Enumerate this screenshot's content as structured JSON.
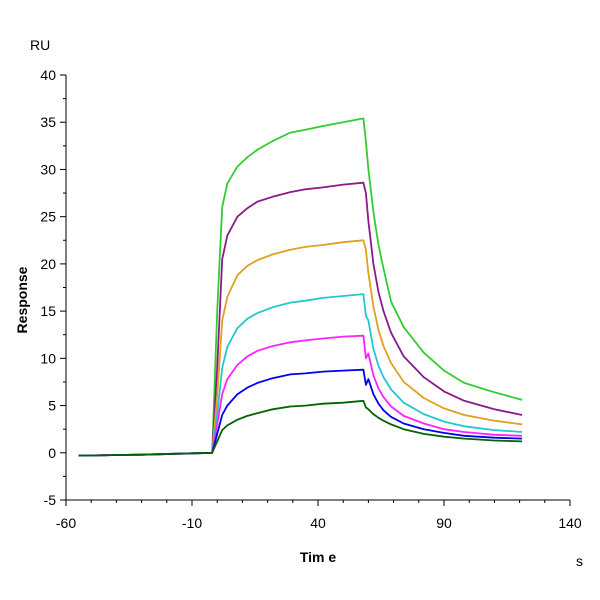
{
  "chart_data": {
    "type": "line",
    "xlabel": "Tim e",
    "xunit": "s",
    "ylabel": "Response",
    "yunit": "RU",
    "xlim": [
      -60,
      140
    ],
    "ylim": [
      -5,
      40
    ],
    "xticks": [
      -60,
      -10,
      40,
      90,
      140
    ],
    "yticks": [
      -5,
      0,
      5,
      10,
      15,
      20,
      25,
      30,
      35,
      40
    ],
    "grid": false,
    "x": [
      -55,
      -30,
      -2,
      0,
      2,
      4,
      8,
      12,
      16,
      22,
      29,
      35,
      42,
      50,
      58,
      59,
      60,
      62,
      64,
      66,
      69,
      74,
      82,
      90,
      98,
      110,
      121
    ],
    "series": [
      {
        "color": "#33cc33",
        "values": [
          -0.3,
          -0.2,
          0,
          15,
          26,
          28.5,
          30.3,
          31.3,
          32.1,
          33,
          33.9,
          34.2,
          34.6,
          35,
          35.4,
          33,
          30,
          25.5,
          22,
          19.5,
          16,
          13.3,
          10.6,
          8.7,
          7.4,
          6.4,
          5.6
        ]
      },
      {
        "color": "#8b1a8b",
        "values": [
          -0.3,
          -0.2,
          0,
          9,
          20.5,
          23,
          25,
          25.9,
          26.6,
          27.1,
          27.6,
          27.9,
          28.1,
          28.4,
          28.6,
          27.5,
          24.5,
          20,
          17,
          15,
          12.7,
          10.2,
          8,
          6.5,
          5.5,
          4.6,
          4.0
        ]
      },
      {
        "color": "#e0a020",
        "values": [
          -0.3,
          -0.2,
          0,
          6,
          14,
          16.5,
          18.8,
          19.8,
          20.4,
          21,
          21.5,
          21.8,
          22,
          22.3,
          22.5,
          21.5,
          19,
          15.5,
          13,
          11.3,
          9.5,
          7.5,
          5.8,
          4.7,
          4.0,
          3.4,
          3.0
        ]
      },
      {
        "color": "#20c8d0",
        "values": [
          -0.3,
          -0.2,
          0,
          4,
          9,
          11.2,
          13.2,
          14.2,
          14.8,
          15.4,
          15.9,
          16.1,
          16.4,
          16.6,
          16.8,
          14.5,
          14,
          11,
          9.2,
          8,
          6.7,
          5.3,
          4.1,
          3.3,
          2.8,
          2.4,
          2.2
        ]
      },
      {
        "color": "#ff22ff",
        "values": [
          -0.3,
          -0.2,
          0,
          3,
          6.2,
          7.8,
          9.3,
          10.2,
          10.8,
          11.3,
          11.7,
          11.9,
          12.1,
          12.3,
          12.4,
          10,
          10.5,
          8.2,
          6.8,
          5.9,
          4.9,
          3.9,
          3.1,
          2.5,
          2.2,
          1.9,
          1.8
        ]
      },
      {
        "color": "#0000ee",
        "values": [
          -0.3,
          -0.2,
          0,
          2,
          4,
          5,
          6.2,
          6.9,
          7.4,
          7.9,
          8.3,
          8.4,
          8.6,
          8.7,
          8.8,
          7.2,
          7.8,
          6.2,
          5.2,
          4.5,
          3.8,
          3.1,
          2.5,
          2.1,
          1.8,
          1.6,
          1.5
        ]
      },
      {
        "color": "#006400",
        "values": [
          -0.3,
          -0.2,
          0,
          1.2,
          2.4,
          2.9,
          3.5,
          3.9,
          4.2,
          4.6,
          4.9,
          5.0,
          5.2,
          5.3,
          5.5,
          4.8,
          4.6,
          4.1,
          3.7,
          3.4,
          3.0,
          2.5,
          2.0,
          1.7,
          1.5,
          1.3,
          1.2
        ]
      }
    ]
  }
}
